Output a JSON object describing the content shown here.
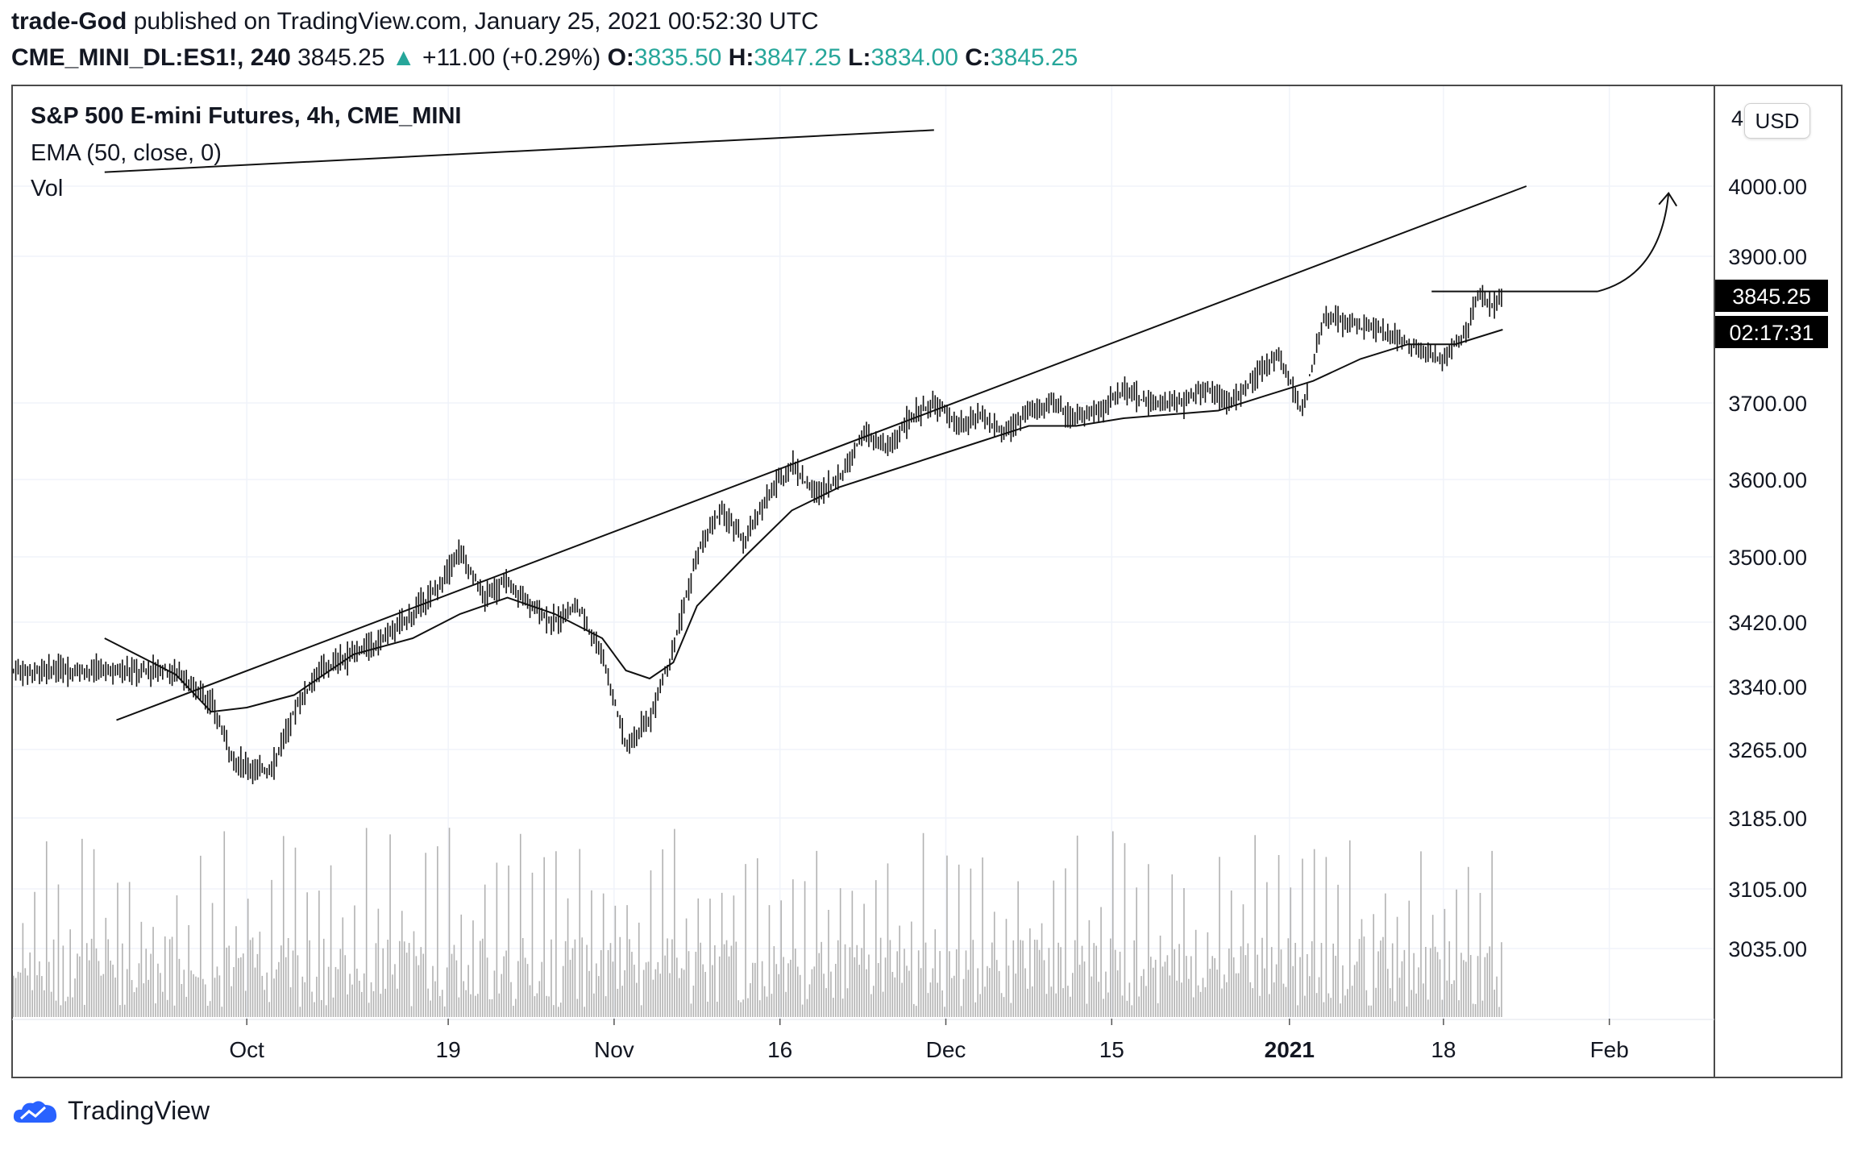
{
  "header": {
    "author": "trade-God",
    "published_text": "published on TradingView.com, January 25, 2021 00:52:30 UTC",
    "symbol": "CME_MINI_DL:ES1!, 240",
    "last": "3845.25",
    "change_arrow": "▲",
    "change": "+11.00 (+0.29%)",
    "o_label": "O:",
    "o_value": "3835.50",
    "h_label": "H:",
    "h_value": "3847.25",
    "l_label": "L:",
    "l_value": "3834.00",
    "c_label": "C:",
    "c_value": "3845.25"
  },
  "legend": {
    "title": "S&P 500 E-mini Futures, 4h, CME_MINI",
    "ema": "EMA (50, close, 0)",
    "vol": "Vol"
  },
  "currency": "USD",
  "footer": {
    "brand": "TradingView",
    "logo_icon": "tradingview-cloud-icon"
  },
  "colors": {
    "accent_teal": "#26a69a",
    "candle": "#111111",
    "volume": "#b2b2b2",
    "grid": "#f0f3fa"
  },
  "chart_data": {
    "type": "candlestick",
    "title": "S&P 500 E-mini Futures, 4h, CME_MINI",
    "timeframe": "4h",
    "y_ticks": [
      "3035.00",
      "3105.00",
      "3185.00",
      "3265.00",
      "3340.00",
      "3420.00",
      "3500.00",
      "3600.00",
      "3700.00",
      "3900.00",
      "4000.00"
    ],
    "y_tick_values": [
      3035,
      3105,
      3185,
      3265,
      3340,
      3420,
      3500,
      3600,
      3700,
      3900,
      4000
    ],
    "top_partial_tick": "4",
    "x_ticks": [
      "Oct",
      "19",
      "Nov",
      "16",
      "Dec",
      "15",
      "2021",
      "18",
      "Feb"
    ],
    "x_tick_days": [
      6,
      23,
      37,
      51,
      65,
      79,
      94,
      107,
      121
    ],
    "last_price_label": "3845.25",
    "countdown_label": "02:17:31",
    "price_path": [
      [
        0,
        3360
      ],
      [
        3,
        3320
      ],
      [
        5,
        3250
      ],
      [
        8,
        3240
      ],
      [
        10,
        3310
      ],
      [
        12,
        3360
      ],
      [
        15,
        3380
      ],
      [
        17,
        3395
      ],
      [
        20,
        3430
      ],
      [
        22,
        3460
      ],
      [
        24,
        3510
      ],
      [
        26,
        3450
      ],
      [
        28,
        3470
      ],
      [
        30,
        3440
      ],
      [
        32,
        3420
      ],
      [
        34,
        3440
      ],
      [
        36,
        3380
      ],
      [
        38,
        3270
      ],
      [
        40,
        3300
      ],
      [
        42,
        3390
      ],
      [
        44,
        3500
      ],
      [
        46,
        3560
      ],
      [
        48,
        3520
      ],
      [
        50,
        3580
      ],
      [
        52,
        3620
      ],
      [
        54,
        3580
      ],
      [
        56,
        3600
      ],
      [
        58,
        3660
      ],
      [
        60,
        3640
      ],
      [
        62,
        3680
      ],
      [
        64,
        3700
      ],
      [
        66,
        3670
      ],
      [
        68,
        3680
      ],
      [
        70,
        3660
      ],
      [
        72,
        3690
      ],
      [
        74,
        3700
      ],
      [
        76,
        3680
      ],
      [
        78,
        3690
      ],
      [
        80,
        3720
      ],
      [
        82,
        3700
      ],
      [
        85,
        3700
      ],
      [
        87,
        3720
      ],
      [
        89,
        3700
      ],
      [
        91,
        3730
      ],
      [
        93,
        3770
      ],
      [
        95,
        3690
      ],
      [
        97,
        3820
      ],
      [
        99,
        3810
      ],
      [
        101,
        3800
      ],
      [
        103,
        3790
      ],
      [
        105,
        3770
      ],
      [
        107,
        3760
      ],
      [
        109,
        3800
      ],
      [
        110,
        3850
      ],
      [
        111,
        3830
      ],
      [
        112,
        3845
      ]
    ],
    "ema_path": [
      [
        -6,
        3400
      ],
      [
        0,
        3355
      ],
      [
        3,
        3310
      ],
      [
        6,
        3315
      ],
      [
        10,
        3330
      ],
      [
        15,
        3380
      ],
      [
        20,
        3400
      ],
      [
        24,
        3430
      ],
      [
        28,
        3450
      ],
      [
        32,
        3430
      ],
      [
        36,
        3400
      ],
      [
        38,
        3360
      ],
      [
        40,
        3350
      ],
      [
        42,
        3370
      ],
      [
        44,
        3440
      ],
      [
        48,
        3500
      ],
      [
        52,
        3560
      ],
      [
        56,
        3590
      ],
      [
        60,
        3610
      ],
      [
        64,
        3630
      ],
      [
        68,
        3650
      ],
      [
        72,
        3670
      ],
      [
        76,
        3670
      ],
      [
        80,
        3680
      ],
      [
        84,
        3685
      ],
      [
        88,
        3690
      ],
      [
        92,
        3710
      ],
      [
        96,
        3730
      ],
      [
        100,
        3760
      ],
      [
        104,
        3780
      ],
      [
        108,
        3780
      ],
      [
        112,
        3800
      ]
    ],
    "annotations": [
      {
        "type": "trendline",
        "from": [
          -5,
          3300
        ],
        "to": [
          114,
          4000
        ]
      },
      {
        "type": "trendline",
        "from": [
          -6,
          4020
        ],
        "to": [
          64,
          4080
        ]
      },
      {
        "type": "horizontal",
        "from": [
          106,
          3852
        ],
        "to": [
          120,
          3852
        ]
      },
      {
        "type": "arrow",
        "from": [
          120,
          3852
        ],
        "to": [
          126,
          3990
        ]
      }
    ],
    "volume_note": "volume bars along bottom, approx. relative scale 0-1"
  }
}
